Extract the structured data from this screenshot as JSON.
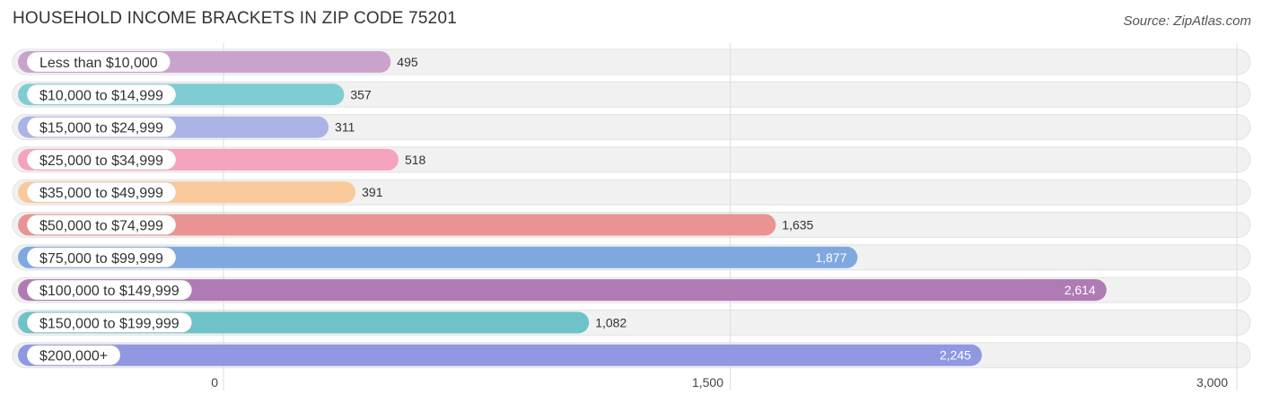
{
  "header": {
    "title": "HOUSEHOLD INCOME BRACKETS IN ZIP CODE 75201",
    "source": "Source: ZipAtlas.com"
  },
  "chart_data": {
    "type": "bar",
    "orientation": "horizontal",
    "title": "HOUSEHOLD INCOME BRACKETS IN ZIP CODE 75201",
    "categories": [
      "Less than $10,000",
      "$10,000 to $14,999",
      "$15,000 to $24,999",
      "$25,000 to $34,999",
      "$35,000 to $49,999",
      "$50,000 to $74,999",
      "$75,000 to $99,999",
      "$100,000 to $149,999",
      "$150,000 to $199,999",
      "$200,000+"
    ],
    "values": [
      495,
      357,
      311,
      518,
      391,
      1635,
      1877,
      2614,
      1082,
      2245
    ],
    "value_labels": [
      "495",
      "357",
      "311",
      "518",
      "391",
      "1,635",
      "1,877",
      "2,614",
      "1,082",
      "2,245"
    ],
    "colors": [
      "#c9a3cc",
      "#7fcdd2",
      "#aab4e6",
      "#f5a3bd",
      "#f9c99a",
      "#e99393",
      "#7ea9e0",
      "#b07ab5",
      "#6ec3c9",
      "#8f98e0"
    ],
    "xlim": [
      0,
      3000
    ],
    "xticks": [
      0,
      1500,
      3000
    ],
    "xtick_labels": [
      "0",
      "1,500",
      "3,000"
    ],
    "grid": true
  }
}
